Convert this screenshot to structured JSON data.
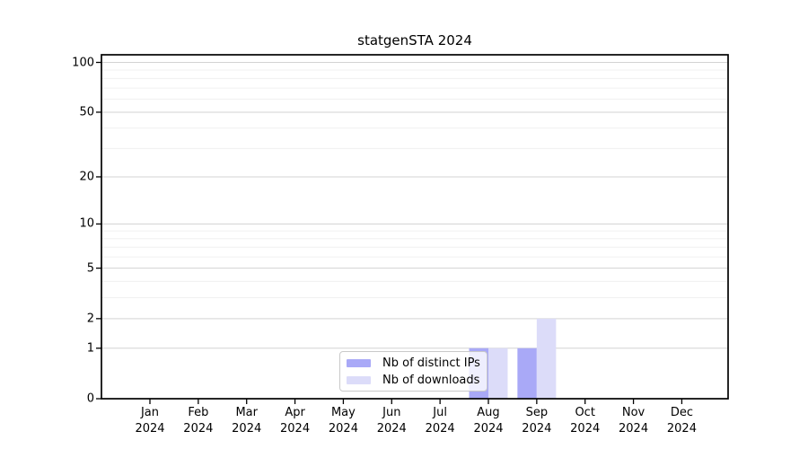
{
  "chart_data": {
    "type": "bar",
    "title": "statgenSTA 2024",
    "categories": [
      "Jan 2024",
      "Feb 2024",
      "Mar 2024",
      "Apr 2024",
      "May 2024",
      "Jun 2024",
      "Jul 2024",
      "Aug 2024",
      "Sep 2024",
      "Oct 2024",
      "Nov 2024",
      "Dec 2024"
    ],
    "series": [
      {
        "name": "Nb of distinct IPs",
        "color": "#a9a9f7",
        "values": [
          0,
          0,
          0,
          0,
          0,
          0,
          0,
          1,
          1,
          0,
          0,
          0
        ]
      },
      {
        "name": "Nb of downloads",
        "color": "#dcdcf9",
        "values": [
          0,
          0,
          0,
          0,
          0,
          0,
          0,
          1,
          2,
          0,
          0,
          0
        ]
      }
    ],
    "y_axis": {
      "scale": "log1p",
      "tick_labels": [
        0,
        1,
        2,
        5,
        10,
        20,
        50,
        100
      ],
      "minor_gridlines": [
        3,
        4,
        6,
        7,
        8,
        9,
        30,
        40,
        60,
        70,
        80,
        90
      ],
      "ylim": [
        0,
        111
      ]
    },
    "x_axis": {
      "tick_count": 12
    },
    "legend": {
      "position": "lower-center-inside"
    },
    "grid": "horizontal major+minor",
    "colors": {
      "background": "#ffffff",
      "major_grid": "#d3d3d3",
      "minor_grid": "#f0f0f0",
      "axis": "#000000",
      "text": "#000000",
      "legend_border": "#c9c9c9"
    }
  }
}
